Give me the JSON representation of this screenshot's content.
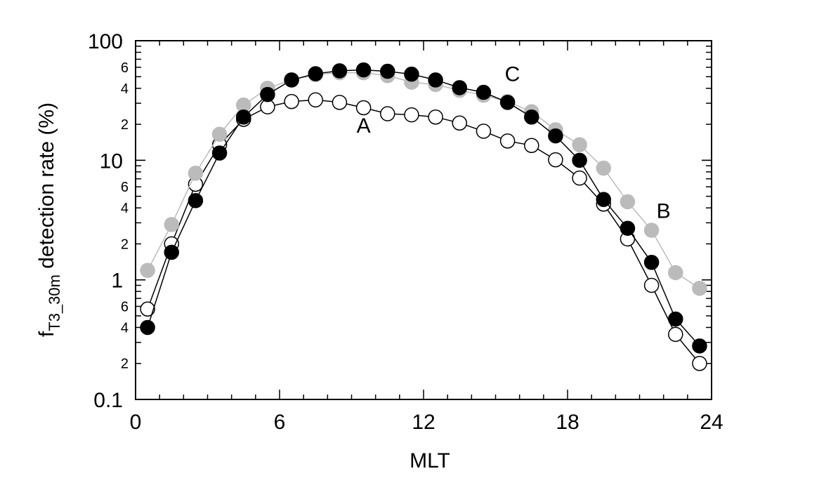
{
  "chart_data": {
    "type": "scatter",
    "xlabel": "MLT",
    "ylabel": {
      "main": "f",
      "subscript": "T3_30m",
      "rest": " detection rate (%)"
    },
    "x_scale": "linear",
    "y_scale": "log",
    "xlim": [
      0,
      24
    ],
    "ylim": [
      0.1,
      100
    ],
    "x_ticks": [
      {
        "value": 0,
        "label": "0"
      },
      {
        "value": 6,
        "label": "6"
      },
      {
        "value": 12,
        "label": "12"
      },
      {
        "value": 18,
        "label": "18"
      },
      {
        "value": 24,
        "label": "24"
      }
    ],
    "y_major_ticks": [
      {
        "value": 0.1,
        "label": "0.1"
      },
      {
        "value": 1,
        "label": "1"
      },
      {
        "value": 10,
        "label": "10"
      },
      {
        "value": 100,
        "label": "100"
      }
    ],
    "y_minor_labeled": [
      {
        "value": 0.2,
        "label": "2"
      },
      {
        "value": 0.4,
        "label": "4"
      },
      {
        "value": 0.6,
        "label": "6"
      },
      {
        "value": 2,
        "label": "2"
      },
      {
        "value": 4,
        "label": "4"
      },
      {
        "value": 6,
        "label": "6"
      },
      {
        "value": 20,
        "label": "2"
      },
      {
        "value": 40,
        "label": "4"
      },
      {
        "value": 60,
        "label": "6"
      }
    ],
    "x": [
      0.5,
      1.5,
      2.5,
      3.5,
      4.5,
      5.5,
      6.5,
      7.5,
      8.5,
      9.5,
      10.5,
      11.5,
      12.5,
      13.5,
      14.5,
      15.5,
      16.5,
      17.5,
      18.5,
      19.5,
      20.5,
      21.5,
      22.5,
      23.5
    ],
    "series": [
      {
        "label": "A",
        "marker": "open-circle",
        "line_color": "#000000",
        "marker_fill": "#ffffff",
        "marker_stroke": "#000000",
        "values": [
          0.57,
          2.0,
          6.3,
          13.5,
          22,
          28,
          31,
          32,
          30.5,
          27.5,
          24.5,
          24,
          23,
          20.5,
          17.5,
          14.5,
          13.3,
          10.1,
          7.1,
          4.3,
          2.2,
          0.9,
          0.35,
          0.2
        ],
        "label_anchor": {
          "x": 9.5,
          "y": 17
        }
      },
      {
        "label": "B",
        "marker": "filled-circle",
        "line_color": "#bbbbbb",
        "marker_fill": "#bbbbbb",
        "marker_stroke": "#bbbbbb",
        "values": [
          1.2,
          2.9,
          7.8,
          16.5,
          29,
          40,
          47,
          52,
          54,
          54,
          51,
          45,
          43,
          38.5,
          35,
          31,
          25.5,
          18,
          13.5,
          8.6,
          4.5,
          2.6,
          1.15,
          0.85
        ],
        "label_anchor": {
          "x": 22.0,
          "y": 3.3
        }
      },
      {
        "label": "C",
        "marker": "filled-circle",
        "line_color": "#000000",
        "marker_fill": "#000000",
        "marker_stroke": "#000000",
        "values": [
          0.4,
          1.7,
          4.6,
          11.5,
          23,
          35.5,
          47,
          53,
          56,
          57,
          55.5,
          52.5,
          47,
          40.5,
          37,
          30.5,
          23,
          16,
          10,
          4.7,
          2.7,
          1.4,
          0.47,
          0.28
        ],
        "label_anchor": {
          "x": 15.7,
          "y": 46
        }
      }
    ]
  }
}
